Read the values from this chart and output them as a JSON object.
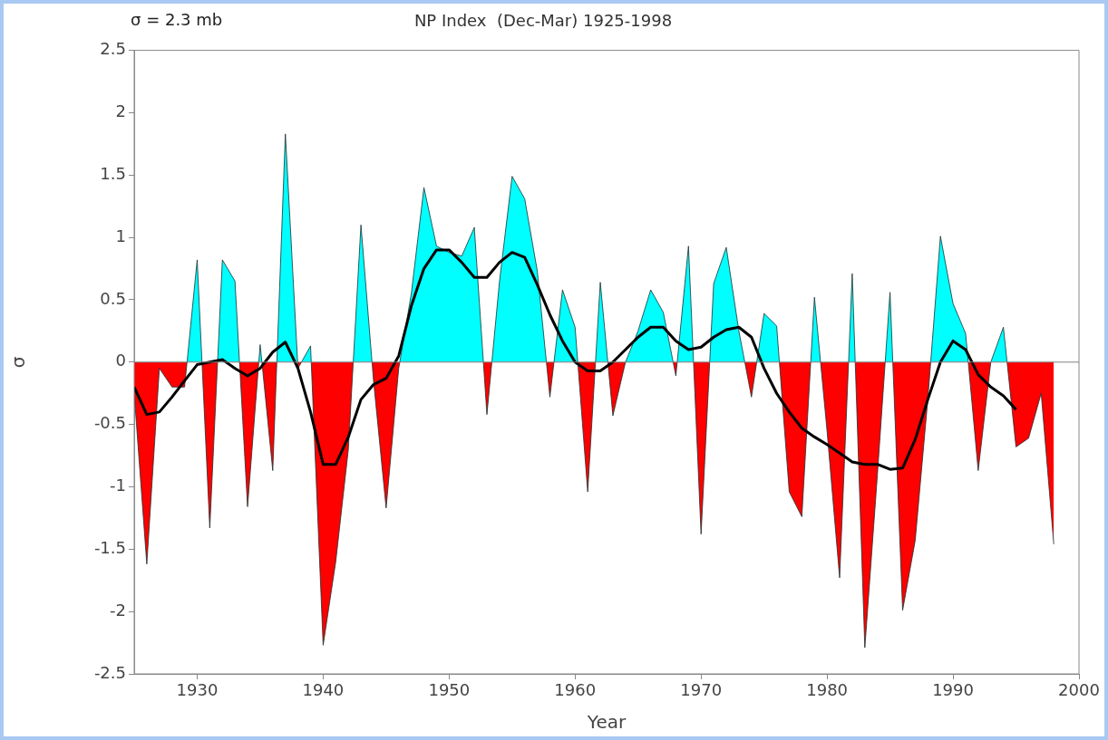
{
  "chart_data": {
    "type": "area",
    "title": "NP Index  (Dec-Mar) 1925-1998",
    "xlabel": "Year",
    "ylabel": "σ",
    "annotations": [
      "σ = 2.3 mb"
    ],
    "xlim": [
      1925,
      2000
    ],
    "xticks": [
      1930,
      1940,
      1950,
      1960,
      1970,
      1980,
      1990,
      2000
    ],
    "ylim": [
      -2.5,
      2.5
    ],
    "yticks": [
      -2.5,
      -2,
      -1.5,
      -1,
      -0.5,
      0,
      0.5,
      1,
      1.5,
      2,
      2.5
    ],
    "grid": false,
    "ref_lines": [
      {
        "axis": "y",
        "value": 0,
        "color": "#808080"
      }
    ],
    "series": [
      {
        "color": "#00ffff",
        "colors": [
          "#ff0000",
          "#ff0000",
          "#ff0000",
          "#ff0000",
          "#ff0000",
          "#00ffff",
          "#ff0000",
          "#00ffff",
          "#00ffff",
          "#ff0000",
          "#00ffff",
          "#ff0000",
          "#00ffff",
          "#ff0000",
          "#00ffff",
          "#ff0000",
          "#ff0000",
          "#ff0000",
          "#00ffff",
          "#ff0000",
          "#ff0000",
          "#ff0000",
          "#00ffff",
          "#00ffff",
          "#00ffff",
          "#00ffff",
          "#00ffff",
          "#00ffff",
          "#ff0000",
          "#00ffff",
          "#00ffff",
          "#00ffff",
          "#00ffff",
          "#ff0000",
          "#00ffff",
          "#00ffff",
          "#ff0000",
          "#00ffff",
          "#ff0000",
          "#00ffff",
          "#00ffff",
          "#00ffff",
          "#00ffff",
          "#ff0000",
          "#00ffff",
          "#ff0000",
          "#00ffff",
          "#00ffff",
          "#00ffff",
          "#ff0000",
          "#00ffff",
          "#00ffff",
          "#ff0000",
          "#ff0000",
          "#00ffff",
          "#ff0000",
          "#ff0000",
          "#00ffff",
          "#ff0000",
          "#ff0000",
          "#00ffff",
          "#ff0000",
          "#ff0000",
          "#ff0000",
          "#00ffff",
          "#00ffff",
          "#00ffff",
          "#ff0000",
          "#00ffff",
          "#00ffff",
          "#ff0000",
          "#ff0000",
          "#ff0000",
          "#ff0000"
        ],
        "x": [
          1925,
          1926,
          1927,
          1928,
          1929,
          1930,
          1931,
          1932,
          1933,
          1934,
          1935,
          1936,
          1937,
          1938,
          1939,
          1940,
          1941,
          1942,
          1943,
          1944,
          1945,
          1946,
          1947,
          1948,
          1949,
          1950,
          1951,
          1952,
          1953,
          1954,
          1955,
          1956,
          1957,
          1958,
          1959,
          1960,
          1961,
          1962,
          1963,
          1964,
          1965,
          1966,
          1967,
          1968,
          1969,
          1970,
          1971,
          1972,
          1973,
          1974,
          1975,
          1976,
          1977,
          1978,
          1979,
          1980,
          1981,
          1982,
          1983,
          1984,
          1985,
          1986,
          1987,
          1988,
          1989,
          1990,
          1991,
          1992,
          1993,
          1994,
          1995,
          1996,
          1997,
          1998
        ],
        "values": [
          -0.25,
          -1.62,
          -0.05,
          -0.2,
          -0.2,
          0.82,
          -1.33,
          0.82,
          0.65,
          -1.16,
          0.14,
          -0.87,
          1.83,
          -0.05,
          0.13,
          -2.27,
          -1.6,
          -0.7,
          1.1,
          -0.15,
          -1.17,
          -0.05,
          0.55,
          1.4,
          0.93,
          0.88,
          0.85,
          1.08,
          -0.42,
          0.65,
          1.49,
          1.31,
          0.73,
          -0.28,
          0.58,
          0.28,
          -1.04,
          0.64,
          -0.43,
          0,
          0.25,
          0.58,
          0.4,
          -0.11,
          0.93,
          -1.38,
          0.63,
          0.92,
          0.25,
          -0.28,
          0.39,
          0.29,
          -1.04,
          -1.24,
          0.52,
          -0.55,
          -1.73,
          0.71,
          -2.29,
          -0.9,
          0.56,
          -1.99,
          -1.43,
          -0.3,
          1.01,
          0.47,
          0.23,
          -0.87,
          0,
          0.28,
          -0.68,
          -0.61,
          -0.25,
          -1.46
        ]
      },
      {
        "type": "line",
        "color": "#000000",
        "x": [
          1925,
          1926,
          1927,
          1928,
          1929,
          1930,
          1931,
          1932,
          1933,
          1934,
          1935,
          1936,
          1937,
          1938,
          1939,
          1940,
          1941,
          1942,
          1943,
          1944,
          1945,
          1946,
          1947,
          1948,
          1949,
          1950,
          1951,
          1952,
          1953,
          1954,
          1955,
          1956,
          1957,
          1958,
          1959,
          1960,
          1961,
          1962,
          1963,
          1964,
          1965,
          1966,
          1967,
          1968,
          1969,
          1970,
          1971,
          1972,
          1973,
          1974,
          1975,
          1976,
          1977,
          1978,
          1979,
          1980,
          1981,
          1982,
          1983,
          1984,
          1985,
          1986,
          1987,
          1988,
          1989,
          1990,
          1991,
          1992,
          1993,
          1994,
          1995
        ],
        "values": [
          -0.2,
          -0.42,
          -0.4,
          -0.28,
          -0.15,
          -0.02,
          0,
          0.02,
          -0.05,
          -0.11,
          -0.05,
          0.08,
          0.16,
          -0.05,
          -0.4,
          -0.82,
          -0.82,
          -0.6,
          -0.3,
          -0.18,
          -0.13,
          0.05,
          0.45,
          0.75,
          0.9,
          0.9,
          0.8,
          0.68,
          0.68,
          0.8,
          0.88,
          0.84,
          0.62,
          0.38,
          0.17,
          0,
          -0.07,
          -0.07,
          0,
          0.1,
          0.2,
          0.28,
          0.28,
          0.17,
          0.1,
          0.12,
          0.2,
          0.26,
          0.28,
          0.2,
          -0.05,
          -0.25,
          -0.4,
          -0.53,
          -0.6,
          -0.66,
          -0.73,
          -0.8,
          -0.82,
          -0.82,
          -0.86,
          -0.85,
          -0.62,
          -0.3,
          0,
          0.17,
          0.1,
          -0.1,
          -0.2,
          -0.27,
          -0.38
        ]
      }
    ]
  }
}
